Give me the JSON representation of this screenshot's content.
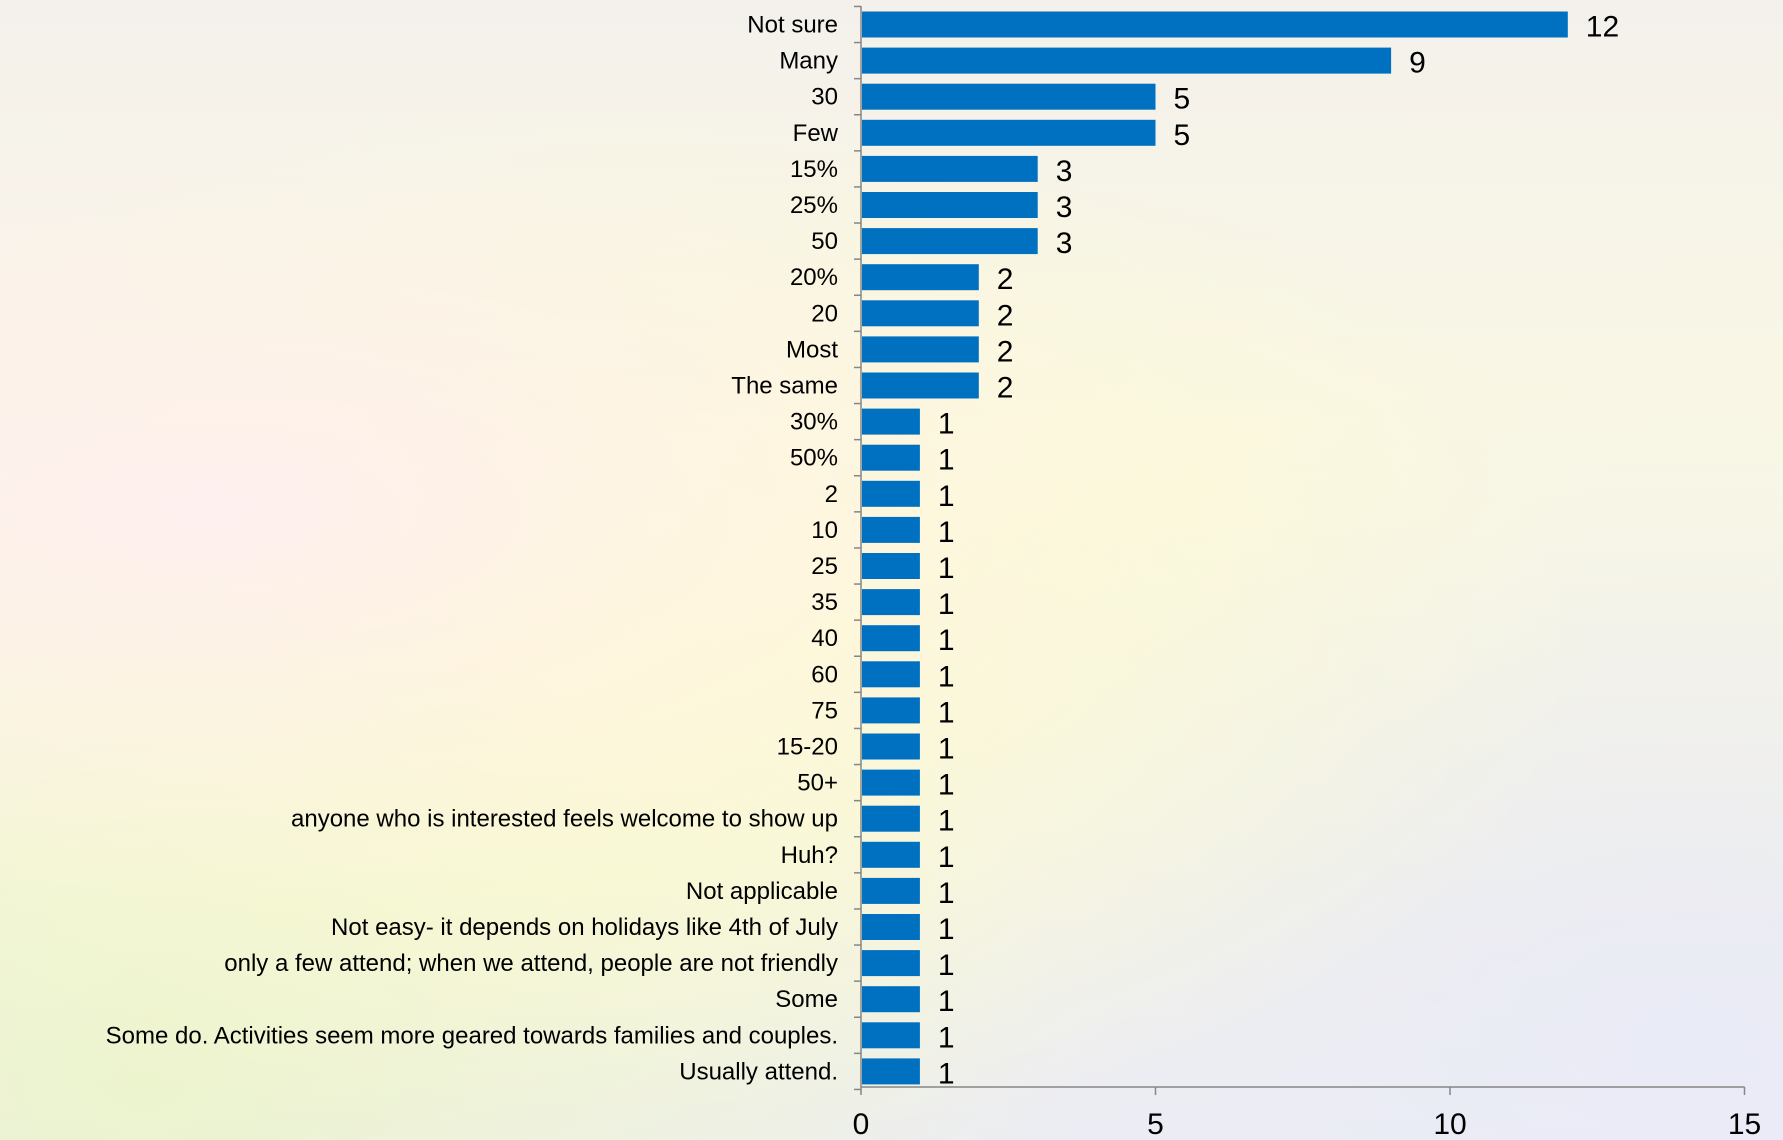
{
  "chart_data": {
    "type": "bar",
    "orientation": "horizontal",
    "categories": [
      "Not sure",
      "Many",
      "30",
      "Few",
      "15%",
      "25%",
      "50",
      "20%",
      "20",
      "Most",
      "The same",
      "30%",
      "50%",
      "2",
      "10",
      "25",
      "35",
      "40",
      "60",
      "75",
      "15-20",
      "50+",
      "anyone who is interested feels welcome to show up",
      "Huh?",
      "Not applicable",
      "Not easy- it depends on holidays like 4th of July",
      "only a few attend; when we attend, people are not friendly",
      "Some",
      "Some do.  Activities seem more geared towards families and couples.",
      "Usually attend."
    ],
    "values": [
      12,
      9,
      5,
      5,
      3,
      3,
      3,
      2,
      2,
      2,
      2,
      1,
      1,
      1,
      1,
      1,
      1,
      1,
      1,
      1,
      1,
      1,
      1,
      1,
      1,
      1,
      1,
      1,
      1,
      1
    ],
    "xlim": [
      0,
      15
    ],
    "xticks": [
      0,
      5,
      10,
      15
    ],
    "title": "",
    "xlabel": "",
    "ylabel": "",
    "grid": false,
    "legend": "none",
    "data_labels": true,
    "bar_color": "#0070C0",
    "axis_color": "#868686"
  }
}
